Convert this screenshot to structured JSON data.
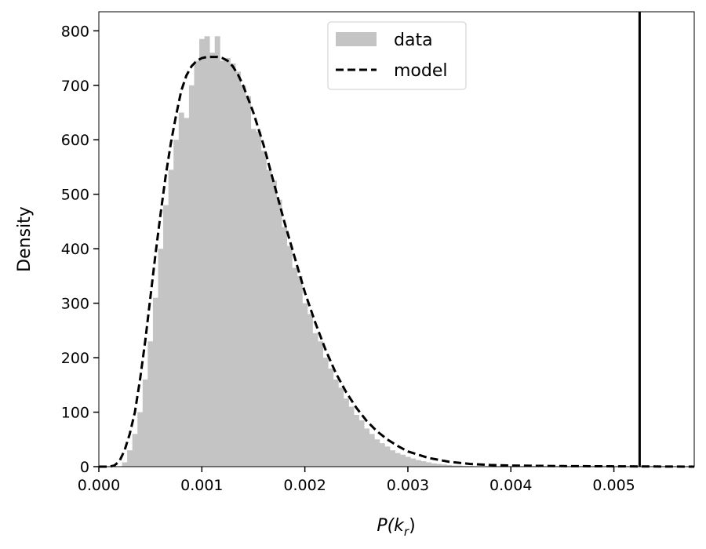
{
  "chart_data": {
    "type": "area",
    "xlabel": "P(k",
    "xlabel_sub": "r",
    "xlabel_close": ")",
    "ylabel": "Density",
    "xlim": [
      0.0,
      0.00578
    ],
    "ylim": [
      0,
      835
    ],
    "grid": false,
    "legend_placement": "top-center",
    "x_ticks": [
      {
        "value": 0.0,
        "label": "0.000"
      },
      {
        "value": 0.001,
        "label": "0.001"
      },
      {
        "value": 0.002,
        "label": "0.002"
      },
      {
        "value": 0.003,
        "label": "0.003"
      },
      {
        "value": 0.004,
        "label": "0.004"
      },
      {
        "value": 0.005,
        "label": "0.005"
      }
    ],
    "y_ticks": [
      {
        "value": 0,
        "label": "0"
      },
      {
        "value": 100,
        "label": "100"
      },
      {
        "value": 200,
        "label": "200"
      },
      {
        "value": 300,
        "label": "300"
      },
      {
        "value": 400,
        "label": "400"
      },
      {
        "value": 500,
        "label": "500"
      },
      {
        "value": 600,
        "label": "600"
      },
      {
        "value": 700,
        "label": "700"
      },
      {
        "value": 800,
        "label": "800"
      }
    ],
    "series": [
      {
        "name": "data",
        "kind": "histogram",
        "color": "#c4c4c4",
        "points": [
          [
            0.00025,
            8
          ],
          [
            0.0003,
            30
          ],
          [
            0.00035,
            60
          ],
          [
            0.0004,
            100
          ],
          [
            0.00045,
            160
          ],
          [
            0.0005,
            230
          ],
          [
            0.00055,
            310
          ],
          [
            0.0006,
            400
          ],
          [
            0.00065,
            480
          ],
          [
            0.0007,
            545
          ],
          [
            0.00075,
            600
          ],
          [
            0.0008,
            650
          ],
          [
            0.00085,
            640
          ],
          [
            0.0009,
            700
          ],
          [
            0.00095,
            745
          ],
          [
            0.001,
            785
          ],
          [
            0.00105,
            790
          ],
          [
            0.0011,
            760
          ],
          [
            0.00115,
            790
          ],
          [
            0.0012,
            745
          ],
          [
            0.00125,
            750
          ],
          [
            0.0013,
            740
          ],
          [
            0.00135,
            725
          ],
          [
            0.0014,
            700
          ],
          [
            0.00145,
            680
          ],
          [
            0.0015,
            620
          ],
          [
            0.00155,
            615
          ],
          [
            0.0016,
            580
          ],
          [
            0.00165,
            545
          ],
          [
            0.0017,
            525
          ],
          [
            0.00175,
            490
          ],
          [
            0.0018,
            440
          ],
          [
            0.00185,
            405
          ],
          [
            0.0019,
            365
          ],
          [
            0.00195,
            350
          ],
          [
            0.002,
            300
          ],
          [
            0.00205,
            280
          ],
          [
            0.0021,
            245
          ],
          [
            0.00215,
            230
          ],
          [
            0.0022,
            200
          ],
          [
            0.00225,
            180
          ],
          [
            0.0023,
            160
          ],
          [
            0.00235,
            145
          ],
          [
            0.0024,
            125
          ],
          [
            0.00245,
            110
          ],
          [
            0.0025,
            95
          ],
          [
            0.00255,
            85
          ],
          [
            0.0026,
            70
          ],
          [
            0.00265,
            60
          ],
          [
            0.0027,
            50
          ],
          [
            0.00275,
            43
          ],
          [
            0.0028,
            37
          ],
          [
            0.00285,
            30
          ],
          [
            0.0029,
            25
          ],
          [
            0.00295,
            22
          ],
          [
            0.003,
            18
          ],
          [
            0.00305,
            15
          ],
          [
            0.0031,
            12
          ],
          [
            0.00315,
            10
          ],
          [
            0.0032,
            8
          ],
          [
            0.00325,
            6
          ],
          [
            0.0033,
            5
          ],
          [
            0.00335,
            4
          ],
          [
            0.0034,
            3
          ],
          [
            0.00345,
            2
          ],
          [
            0.0035,
            2
          ],
          [
            0.00355,
            1
          ],
          [
            0.0036,
            1
          ]
        ]
      },
      {
        "name": "model",
        "kind": "dashed-line",
        "color": "#000000",
        "points": [
          [
            0.0,
            0
          ],
          [
            0.0001,
            0
          ],
          [
            0.00015,
            2
          ],
          [
            0.0002,
            10
          ],
          [
            0.00025,
            30
          ],
          [
            0.0003,
            60
          ],
          [
            0.00035,
            100
          ],
          [
            0.0004,
            160
          ],
          [
            0.00045,
            230
          ],
          [
            0.0005,
            310
          ],
          [
            0.00055,
            390
          ],
          [
            0.0006,
            465
          ],
          [
            0.00065,
            535
          ],
          [
            0.0007,
            595
          ],
          [
            0.00075,
            645
          ],
          [
            0.0008,
            690
          ],
          [
            0.00085,
            718
          ],
          [
            0.0009,
            735
          ],
          [
            0.00095,
            745
          ],
          [
            0.001,
            750
          ],
          [
            0.00105,
            752
          ],
          [
            0.0011,
            752
          ],
          [
            0.00115,
            752
          ],
          [
            0.0012,
            750
          ],
          [
            0.00125,
            745
          ],
          [
            0.0013,
            735
          ],
          [
            0.00135,
            720
          ],
          [
            0.0014,
            700
          ],
          [
            0.0015,
            650
          ],
          [
            0.0016,
            590
          ],
          [
            0.0017,
            520
          ],
          [
            0.0018,
            450
          ],
          [
            0.0019,
            385
          ],
          [
            0.002,
            320
          ],
          [
            0.0021,
            265
          ],
          [
            0.0022,
            215
          ],
          [
            0.0023,
            172
          ],
          [
            0.0024,
            137
          ],
          [
            0.0025,
            108
          ],
          [
            0.0026,
            84
          ],
          [
            0.0027,
            65
          ],
          [
            0.0028,
            50
          ],
          [
            0.0029,
            38
          ],
          [
            0.003,
            28
          ],
          [
            0.0032,
            16
          ],
          [
            0.0034,
            9
          ],
          [
            0.0036,
            5
          ],
          [
            0.0038,
            3
          ],
          [
            0.004,
            2
          ],
          [
            0.0045,
            1
          ],
          [
            0.00578,
            0
          ]
        ]
      }
    ],
    "annotations": [
      {
        "kind": "vertical-line",
        "x": 0.00525,
        "color": "#000000"
      }
    ]
  }
}
